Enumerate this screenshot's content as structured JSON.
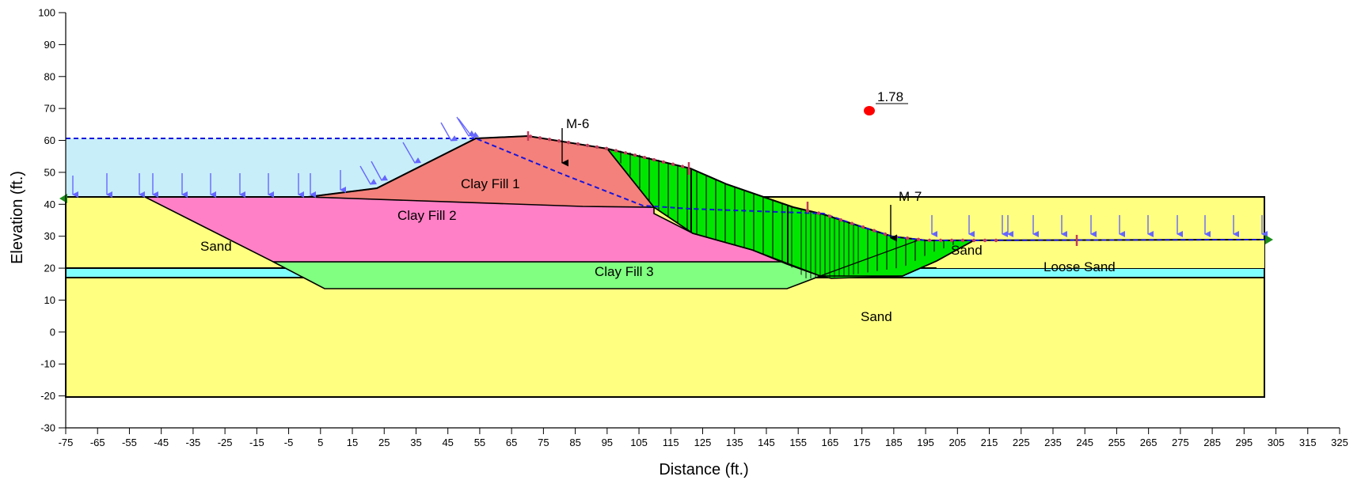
{
  "axes": {
    "xlabel": "Distance (ft.)",
    "ylabel": "Elevation (ft.)",
    "xlim": [
      -75,
      325
    ],
    "ylim": [
      -30,
      100
    ],
    "x_ticks": [
      "-75",
      "-65",
      "-55",
      "-45",
      "-35",
      "-25",
      "-15",
      "-5",
      "5",
      "15",
      "25",
      "35",
      "45",
      "55",
      "65",
      "75",
      "85",
      "95",
      "105",
      "115",
      "125",
      "135",
      "145",
      "155",
      "165",
      "175",
      "185",
      "195",
      "205",
      "215",
      "225",
      "235",
      "245",
      "255",
      "265",
      "275",
      "285",
      "295",
      "305",
      "315",
      "325"
    ],
    "y_ticks": [
      "100",
      "90",
      "80",
      "70",
      "60",
      "50",
      "40",
      "30",
      "20",
      "10",
      "0",
      "-10",
      "-20",
      "-30"
    ]
  },
  "colors": {
    "sand": "#ffff80",
    "clay_fill_1": "#f4817b",
    "clay_fill_2": "#ff80c6",
    "clay_fill_3": "#80ff80",
    "loose_sand_layer": "#80ffff",
    "ponded_water": "#c8eefa",
    "slip_mass": "#00e600",
    "piezometric_line": "#1515dd",
    "load_arrows": "#6666ff",
    "critical_center": "#ff0000",
    "slip_points": "#c23c5a",
    "boundary_markers": "#1a8c1a"
  },
  "materials": {
    "sand_left": "Sand",
    "clay_fill_1": "Clay Fill 1",
    "clay_fill_2": "Clay Fill 2",
    "clay_fill_3": "Clay Fill 3",
    "sand_right": "Sand",
    "loose_sand": "Loose Sand",
    "sand_base": "Sand"
  },
  "annotations": {
    "m6": "M-6",
    "m7": "M-7",
    "factor_of_safety": "1.78"
  },
  "chart_data": {
    "type": "diagram",
    "critical_slip_center": {
      "x": 177,
      "y": 69,
      "factor_of_safety": 1.78
    },
    "piezometric_line": [
      [
        -75,
        60
      ],
      [
        53,
        60
      ],
      [
        80,
        50
      ],
      [
        105,
        40
      ],
      [
        120,
        38.5
      ],
      [
        160,
        37
      ],
      [
        175,
        35
      ],
      [
        185,
        31
      ],
      [
        195,
        29
      ],
      [
        300,
        29
      ]
    ],
    "ground_surface": [
      [
        -75,
        42
      ],
      [
        0,
        42
      ],
      [
        22,
        45
      ],
      [
        53,
        61
      ],
      [
        75,
        62
      ],
      [
        95,
        57
      ],
      [
        120,
        51
      ],
      [
        150,
        42
      ],
      [
        163,
        38
      ],
      [
        180,
        33
      ],
      [
        195,
        29.5
      ],
      [
        300,
        29
      ]
    ],
    "slip_surface": [
      [
        95,
        57
      ],
      [
        107,
        35
      ],
      [
        125,
        27
      ],
      [
        150,
        22
      ],
      [
        162,
        17.5
      ],
      [
        192,
        17.5
      ],
      [
        215,
        24
      ],
      [
        225,
        29
      ]
    ],
    "region_boundaries": {
      "clay_fill_1": [
        [
          0,
          42
        ],
        [
          22,
          45
        ],
        [
          53,
          61
        ],
        [
          75,
          62
        ],
        [
          95,
          57
        ],
        [
          107,
          38.5
        ],
        [
          80,
          39
        ],
        [
          0,
          42
        ]
      ],
      "clay_fill_2": [
        [
          -49,
          42
        ],
        [
          0,
          42
        ],
        [
          107,
          38.5
        ],
        [
          107,
          37
        ],
        [
          125,
          27
        ],
        [
          150,
          22
        ],
        [
          -19,
          22
        ]
      ],
      "clay_fill_3": [
        [
          -19,
          22
        ],
        [
          150,
          22
        ],
        [
          161,
          17.5
        ],
        [
          148,
          14
        ],
        [
          5,
          14
        ]
      ],
      "loose_sand_layer": [
        [
          -75,
          20
        ],
        [
          300,
          20
        ],
        [
          300,
          17
        ],
        [
          -75,
          17
        ]
      ]
    },
    "materials": [
      "Sand",
      "Clay Fill 1",
      "Clay Fill 2",
      "Clay Fill 3",
      "Loose Sand"
    ],
    "annotations": [
      "M-6",
      "M-7"
    ]
  }
}
